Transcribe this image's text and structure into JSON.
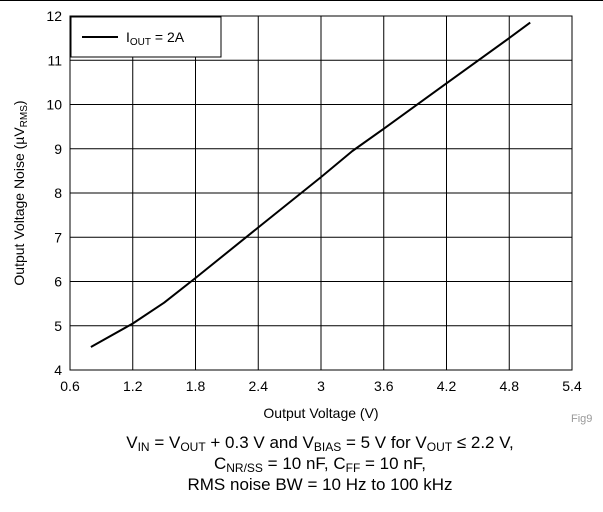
{
  "figure_tag": "Fig9",
  "caption": {
    "line1": [
      {
        "t": "V"
      },
      {
        "s": "IN"
      },
      {
        "t": " = V"
      },
      {
        "s": "OUT"
      },
      {
        "t": " + 0.3 V and V"
      },
      {
        "s": "BIAS"
      },
      {
        "t": " = 5 V for V"
      },
      {
        "s": "OUT"
      },
      {
        "t": " ≤ 2.2 V,"
      }
    ],
    "line2": [
      {
        "t": "C"
      },
      {
        "s": "NR/SS"
      },
      {
        "t": " = 10 nF, C"
      },
      {
        "s": "FF"
      },
      {
        "t": " = 10 nF,"
      }
    ],
    "line3": [
      {
        "t": "RMS noise BW = 10 Hz to 100 kHz"
      }
    ]
  },
  "chart_data": {
    "type": "line",
    "title": "",
    "xlabel": "Output Voltage (V)",
    "ylabel": [
      {
        "t": "Output Voltage Noise (µV"
      },
      {
        "s": "RMS"
      },
      {
        "t": ")"
      }
    ],
    "xlim": [
      0.6,
      5.4
    ],
    "ylim": [
      4,
      12
    ],
    "xticks": [
      0.6,
      1.2,
      1.8,
      2.4,
      3,
      3.6,
      4.2,
      4.8,
      5.4
    ],
    "xtick_labels": [
      "0.6",
      "1.2",
      "1.8",
      "2.4",
      "3",
      "3.6",
      "4.2",
      "4.8",
      "5.4"
    ],
    "yticks": [
      4,
      5,
      6,
      7,
      8,
      9,
      10,
      11,
      12
    ],
    "ytick_labels": [
      "4",
      "5",
      "6",
      "7",
      "8",
      "9",
      "10",
      "11",
      "12"
    ],
    "grid": true,
    "legend_position": "top-left",
    "series": [
      {
        "name": [
          {
            "t": "I"
          },
          {
            "s": "OUT"
          },
          {
            "t": " = 2A"
          }
        ],
        "color": "#000000",
        "x": [
          0.8,
          1.2,
          1.5,
          1.8,
          2.4,
          3.0,
          3.3,
          3.6,
          4.2,
          4.8,
          5.0
        ],
        "y": [
          4.52,
          5.05,
          5.52,
          6.08,
          7.22,
          8.36,
          8.95,
          9.45,
          10.48,
          11.5,
          11.85
        ]
      }
    ]
  }
}
